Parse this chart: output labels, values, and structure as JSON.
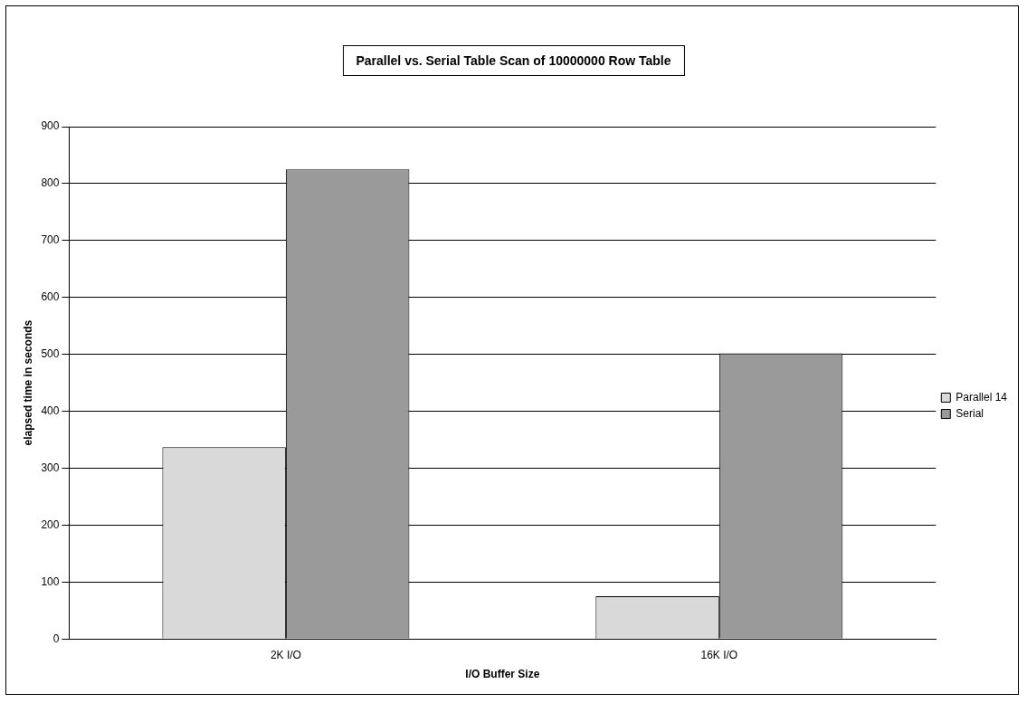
{
  "chart_data": {
    "type": "bar",
    "title": "Parallel vs. Serial Table Scan of 10000000 Row Table",
    "xlabel": "I/O Buffer Size",
    "ylabel": "elapsed time in seconds",
    "categories": [
      "2K I/O",
      "16K I/O"
    ],
    "series": [
      {
        "name": "Parallel 14",
        "color": "#d9d9d9",
        "values": [
          337,
          75
        ]
      },
      {
        "name": "Serial",
        "color": "#9a9a9a",
        "values": [
          825,
          502
        ]
      }
    ],
    "ylim": [
      0,
      900
    ],
    "yticks": [
      0,
      100,
      200,
      300,
      400,
      500,
      600,
      700,
      800,
      900
    ],
    "grid": "y",
    "legend": "right"
  }
}
